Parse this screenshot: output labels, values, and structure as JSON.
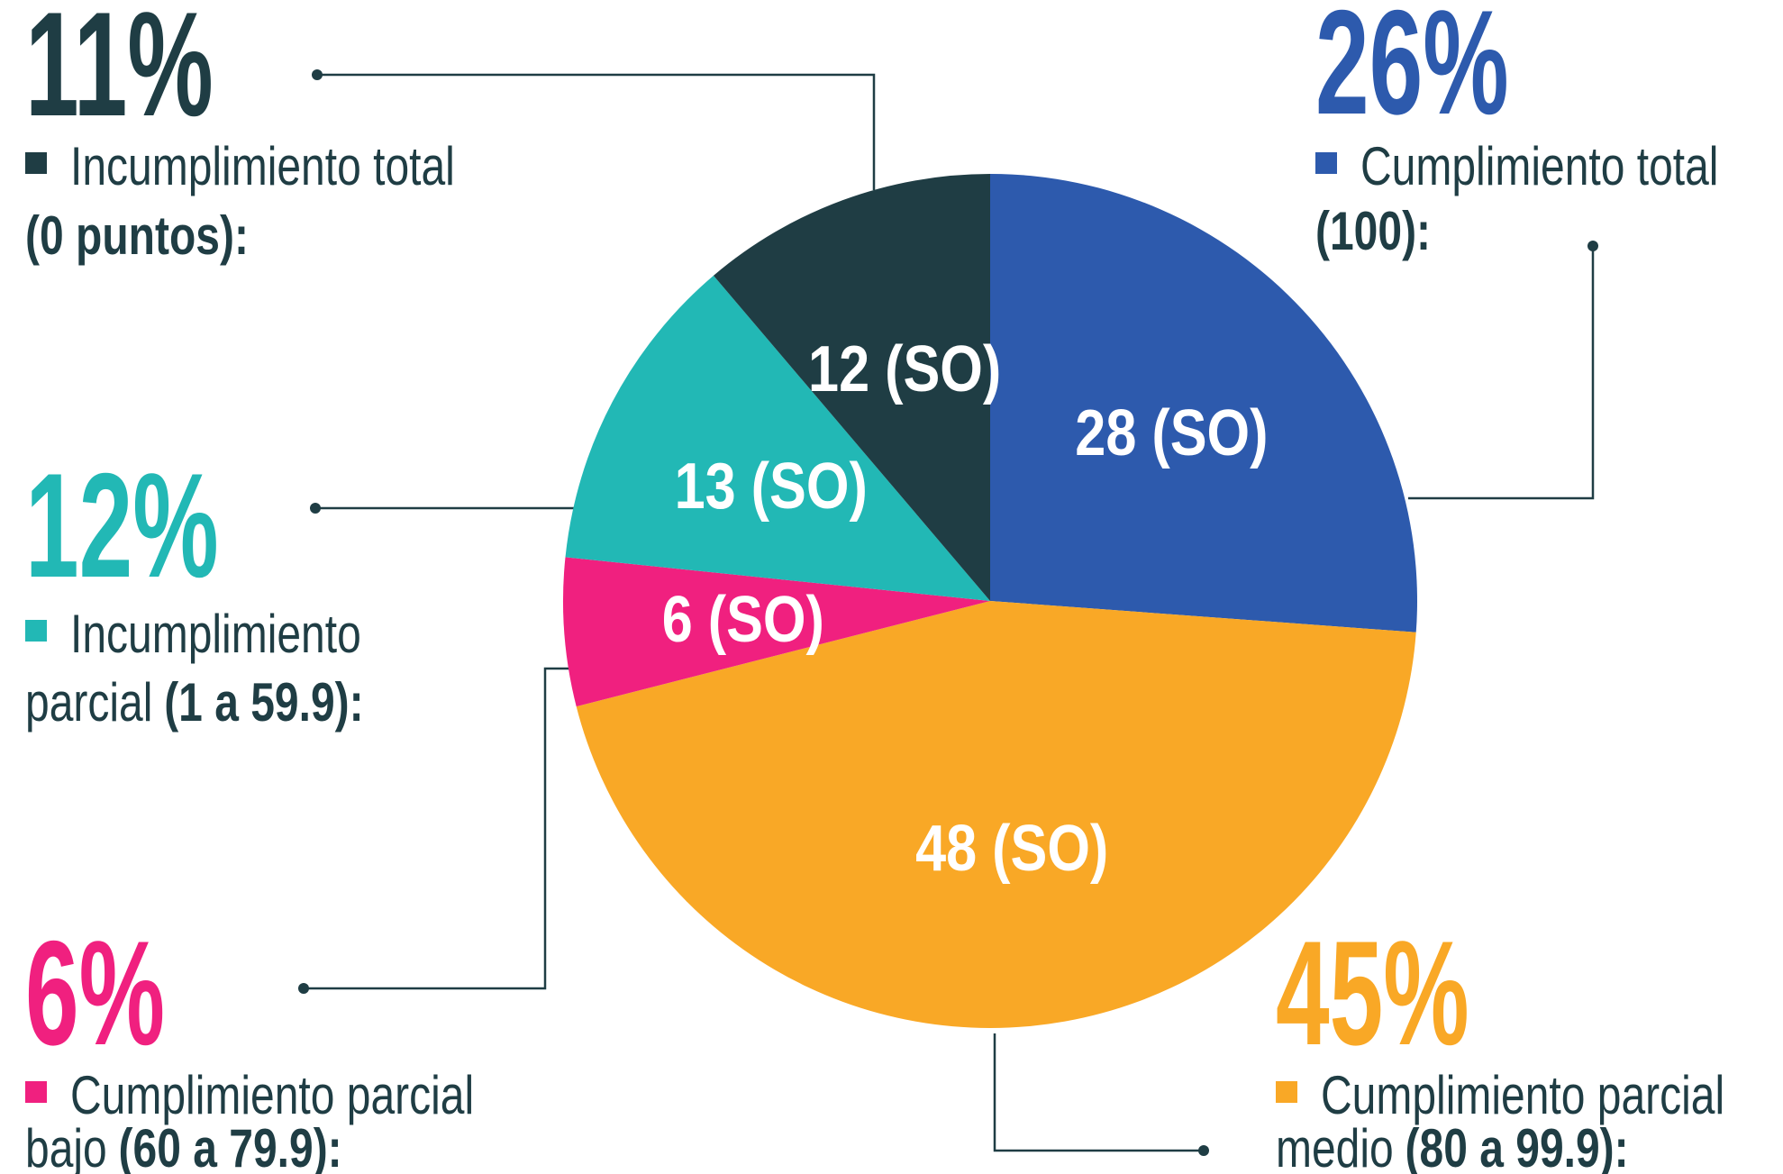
{
  "chart_data": {
    "type": "pie",
    "categories": [
      "Cumplimiento total",
      "Cumplimiento parcial medio",
      "Cumplimiento parcial bajo",
      "Incumplimiento parcial",
      "Incumplimiento total"
    ],
    "ranges": [
      "(100):",
      "(80 a 99.9):",
      "(60 a 79.9):",
      "(1 a 59.9):",
      "(0 puntos):"
    ],
    "values": [
      28,
      48,
      6,
      13,
      12
    ],
    "value_labels": [
      "28 (SO)",
      "48 (SO)",
      "6 (SO)",
      "13 (SO)",
      "12 (SO)"
    ],
    "percent_labels": [
      {
        "value": 26,
        "label": "26%"
      },
      {
        "value": 45,
        "label": "45%"
      },
      {
        "value": 6,
        "label": "6%"
      },
      {
        "value": 12,
        "label": "12%"
      },
      {
        "value": 11,
        "label": "11%"
      }
    ],
    "colors": [
      "#2d5aad",
      "#f9a826",
      "#f0207f",
      "#22b8b5",
      "#1f3d44"
    ]
  }
}
